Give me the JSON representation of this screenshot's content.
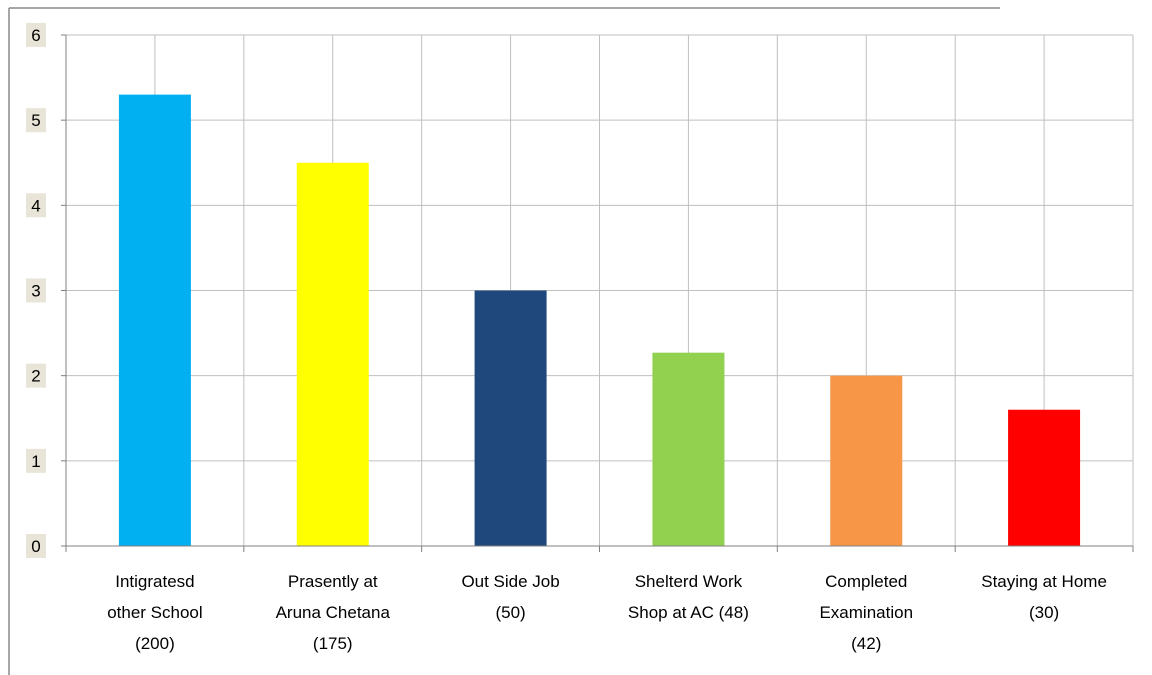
{
  "chart_data": {
    "type": "bar",
    "categories": [
      [
        "Intigratesd",
        "other School",
        "(200)"
      ],
      [
        "Prasently at",
        "Aruna Chetana",
        "(175)"
      ],
      [
        "Out Side Job",
        "(50)"
      ],
      [
        "Shelterd Work",
        "Shop at AC (48)"
      ],
      [
        "Completed",
        "Examination",
        "(42)"
      ],
      [
        "Staying at Home",
        "(30)"
      ]
    ],
    "values": [
      5.3,
      4.5,
      3.0,
      2.27,
      2.0,
      1.6
    ],
    "bar_colors": [
      "#00B0F0",
      "#FFFF00",
      "#1F497D",
      "#92D050",
      "#F79646",
      "#FF0000"
    ],
    "ylim": [
      0,
      6
    ],
    "yticks": [
      0,
      1,
      2,
      3,
      4,
      5,
      6
    ],
    "grid": "on",
    "legend": "none",
    "title": "",
    "xlabel": "",
    "ylabel": ""
  },
  "colors": {
    "gridline": "#BFBFBF",
    "axis": "#808080",
    "ytick_label_bg": "#E8E4D8",
    "frame_border": "#8A8A8A"
  }
}
